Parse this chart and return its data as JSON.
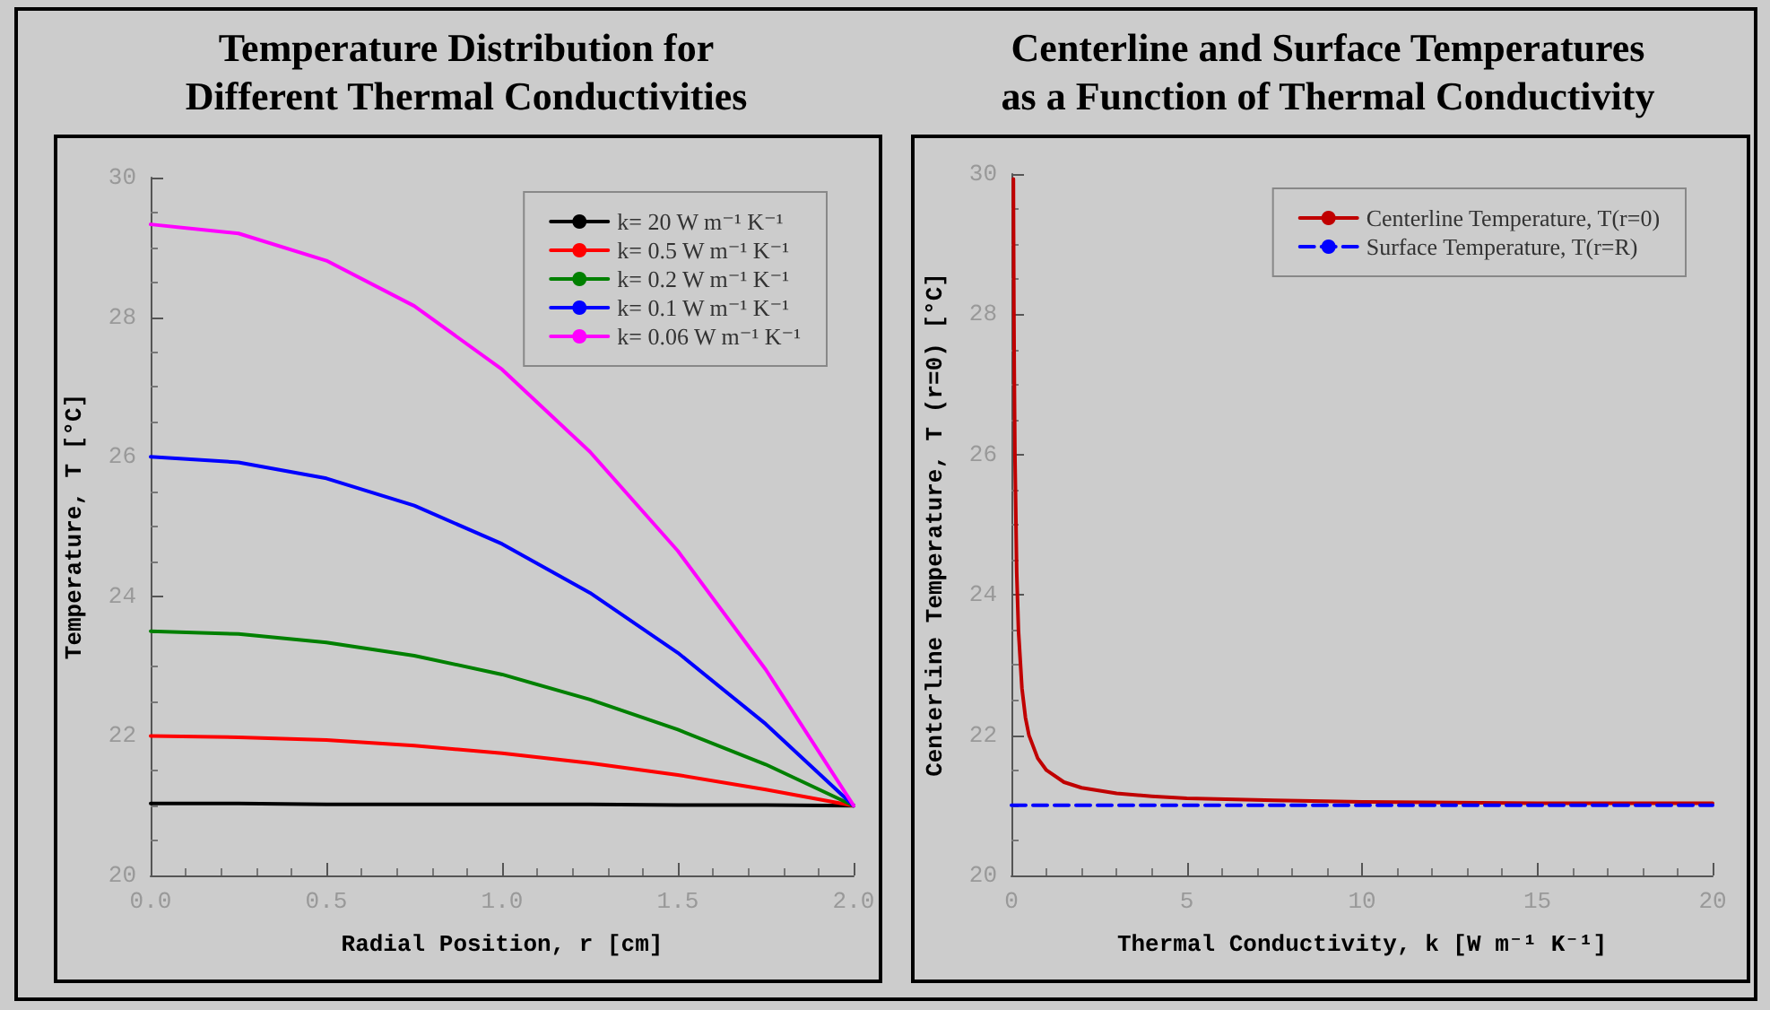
{
  "chart_data": [
    {
      "type": "line",
      "title": "Temperature Distribution for\nDifferent Thermal Conductivities",
      "xlabel": "Radial Position, r [cm]",
      "ylabel": "Temperature, T [°C]",
      "x": [
        0,
        0.25,
        0.5,
        0.75,
        1.0,
        1.25,
        1.5,
        1.75,
        2.0
      ],
      "series": [
        {
          "name": "k= 20 W m⁻¹ K⁻¹",
          "color": "#000000",
          "values": [
            21.03,
            21.03,
            21.02,
            21.02,
            21.02,
            21.02,
            21.01,
            21.01,
            21.0
          ]
        },
        {
          "name": "k= 0.5 W m⁻¹ K⁻¹",
          "color": "#ff0000",
          "values": [
            22.0,
            21.98,
            21.94,
            21.86,
            21.75,
            21.61,
            21.44,
            21.23,
            21.0
          ]
        },
        {
          "name": "k= 0.2 W m⁻¹ K⁻¹",
          "color": "#008000",
          "values": [
            23.5,
            23.46,
            23.34,
            23.15,
            22.88,
            22.52,
            22.09,
            21.59,
            21.0
          ]
        },
        {
          "name": "k= 0.1 W m⁻¹ K⁻¹",
          "color": "#0000ff",
          "values": [
            26.0,
            25.92,
            25.69,
            25.3,
            24.75,
            24.05,
            23.19,
            22.17,
            21.0
          ]
        },
        {
          "name": "k= 0.06 W m⁻¹ K⁻¹",
          "color": "#ff00ff",
          "values": [
            29.33,
            29.2,
            28.81,
            28.16,
            27.25,
            26.07,
            24.65,
            22.95,
            21.0
          ]
        }
      ],
      "xlim": [
        0,
        2
      ],
      "xticks": [
        {
          "value": 0,
          "label": "0.0"
        },
        0.5,
        {
          "value": 1,
          "label": "1.0"
        },
        1.5,
        {
          "value": 2,
          "label": "2.0"
        }
      ],
      "ylim": [
        20,
        30
      ],
      "yticks": [
        20,
        22,
        24,
        26,
        28,
        30
      ],
      "legend": "top right",
      "marker": "none",
      "line_style": "solid"
    },
    {
      "type": "line",
      "title": "Centerline and Surface Temperatures\nas a Function of Thermal Conductivity",
      "xlabel": "Thermal Conductivity, k [W m⁻¹ K⁻¹]",
      "ylabel": "Centerline Temperature, T (r=0) [°C]",
      "series": [
        {
          "name": "Centerline Temperature, T(r=0)",
          "color": "#c00000",
          "line_style": "solid",
          "x": [
            0.056,
            0.06,
            0.07,
            0.08,
            0.1,
            0.15,
            0.2,
            0.3,
            0.4,
            0.5,
            0.75,
            1,
            1.5,
            2,
            3,
            4,
            5,
            7.5,
            10,
            15,
            20
          ],
          "values": [
            29.93,
            29.33,
            28.14,
            27.25,
            26.0,
            24.33,
            23.5,
            22.67,
            22.25,
            22.0,
            21.67,
            21.5,
            21.33,
            21.25,
            21.17,
            21.13,
            21.1,
            21.07,
            21.05,
            21.03,
            21.03
          ]
        },
        {
          "name": "Surface Temperature, T(r=R)",
          "color": "#0000ff",
          "line_style": "dashed",
          "x": [
            0,
            20
          ],
          "values": [
            21.0,
            21.0
          ]
        }
      ],
      "xlim": [
        0,
        20
      ],
      "xticks": [
        0,
        5,
        10,
        15,
        20
      ],
      "ylim": [
        20,
        30
      ],
      "yticks": [
        20,
        22,
        24,
        26,
        28,
        30
      ],
      "legend": "top right",
      "marker": "none"
    }
  ]
}
